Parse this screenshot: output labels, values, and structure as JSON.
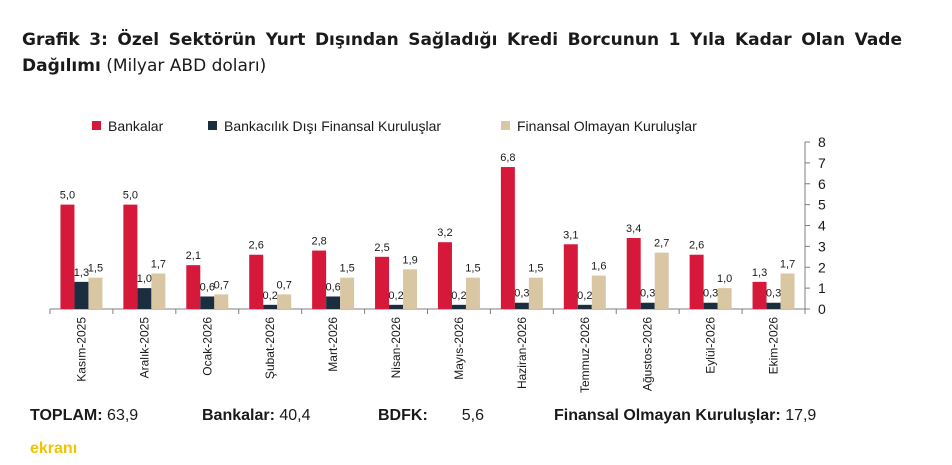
{
  "title": {
    "bold": "Grafik 3: Özel Sektörün Yurt Dışından Sağladığı Kredi Borcunun 1 Yıla Kadar Olan Vade Dağılımı",
    "unit": "(Milyar ABD doları)"
  },
  "colors": {
    "bankalar": "#d6193a",
    "bdfk": "#1b2e40",
    "finansal_olmayan": "#d9c7a3",
    "axis": "#7f7f7f"
  },
  "chart_data": {
    "type": "bar",
    "categories": [
      "Kasım-2025",
      "Aralık-2025",
      "Ocak-2026",
      "Şubat-2026",
      "Mart-2026",
      "Nisan-2026",
      "Mayıs-2026",
      "Haziran-2026",
      "Temmuz-2026",
      "Ağustos-2026",
      "Eylül-2026",
      "Ekim-2026"
    ],
    "series": [
      {
        "name": "Bankalar",
        "values": [
          5.0,
          5.0,
          2.1,
          2.6,
          2.8,
          2.5,
          3.2,
          6.8,
          3.1,
          3.4,
          2.6,
          1.3
        ],
        "labels": [
          "5,0",
          "5,0",
          "2,1",
          "2,6",
          "2,8",
          "2,5",
          "3,2",
          "6,8",
          "3,1",
          "3,4",
          "2,6",
          "1,3"
        ]
      },
      {
        "name": "Bankacılık Dışı Finansal Kuruluşlar",
        "values": [
          1.3,
          1.0,
          0.6,
          0.2,
          0.6,
          0.2,
          0.2,
          0.3,
          0.2,
          0.3,
          0.3,
          0.3
        ],
        "labels": [
          "1,3",
          "1,0",
          "0,6",
          "0,2",
          "0,6",
          "0,2",
          "0,2",
          "0,3",
          "0,2",
          "0,3",
          "0,3",
          "0,3"
        ]
      },
      {
        "name": "Finansal Olmayan Kuruluşlar",
        "values": [
          1.5,
          1.7,
          0.7,
          0.7,
          1.5,
          1.9,
          1.5,
          1.5,
          1.6,
          2.7,
          1.0,
          1.7
        ],
        "labels": [
          "1,5",
          "1,7",
          "0,7",
          "0,7",
          "1,5",
          "1,9",
          "1,5",
          "1,5",
          "1,6",
          "2,7",
          "1,0",
          "1,7"
        ]
      }
    ],
    "yticks": [
      "0",
      "1",
      "2",
      "3",
      "4",
      "5",
      "6",
      "7",
      "8"
    ],
    "ylim": [
      0,
      8
    ],
    "y_axis_side": "right",
    "legend_position": "top",
    "grid": false
  },
  "totals": {
    "toplam_label": "TOPLAM:",
    "toplam_value": "63,9",
    "bankalar_label": "Bankalar:",
    "bankalar_value": "40,4",
    "bdfk_label": "BDFK:",
    "bdfk_value": "5,6",
    "fok_label": "Finansal Olmayan Kuruluşlar:",
    "fok_value": "17,9"
  },
  "logo": {
    "part1": "",
    "part2": "ekranı"
  }
}
